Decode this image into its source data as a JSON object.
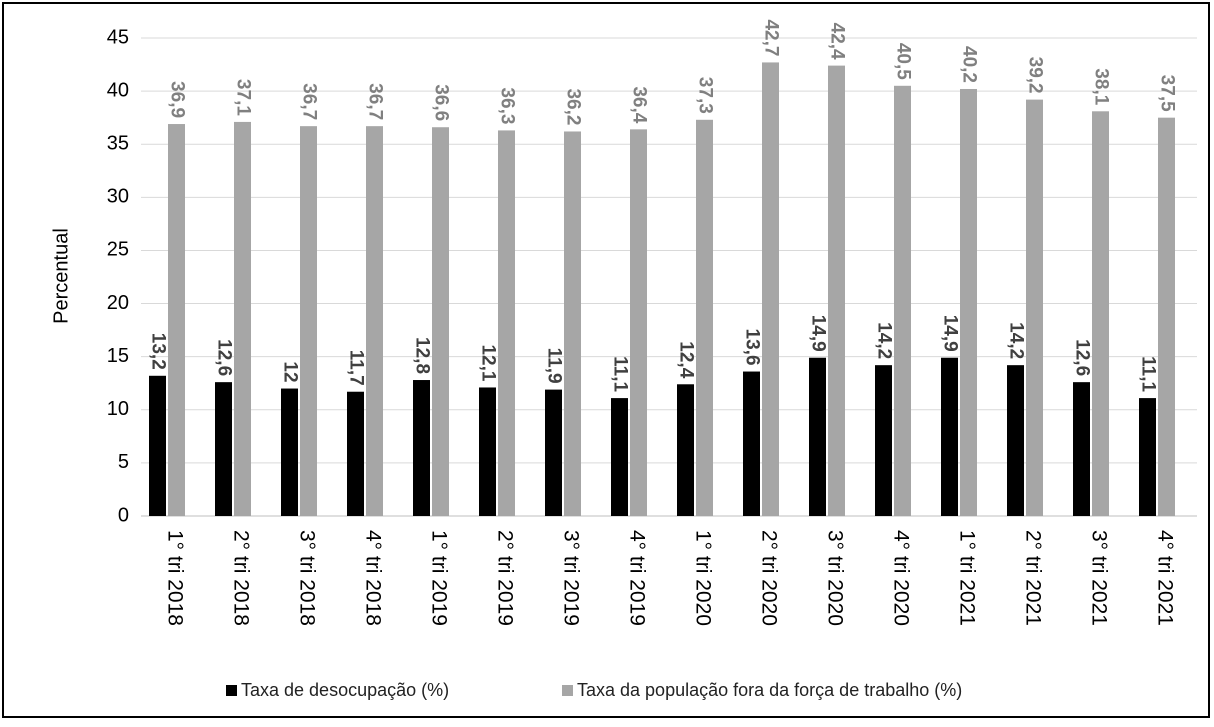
{
  "chart_data": {
    "type": "bar",
    "y_label": "Percentual",
    "categories": [
      "1° tri 2018",
      "2° tri 2018",
      "3° tri 2018",
      "4° tri 2018",
      "1° tri 2019",
      "2° tri 2019",
      "3° tri 2019",
      "4° tri 2019",
      "1° tri 2020",
      "2° tri 2020",
      "3° tri 2020",
      "4° tri 2020",
      "1° tri 2021",
      "2° tri 2021",
      "3° tri 2021",
      "4° tri 2021"
    ],
    "series": [
      {
        "name": "Taxa de desocupação (%)",
        "color": "#000000",
        "values": [
          13.2,
          12.6,
          12,
          11.7,
          12.8,
          12.1,
          11.9,
          11.1,
          12.4,
          13.6,
          14.9,
          14.2,
          14.9,
          14.2,
          12.6,
          11.1
        ],
        "value_labels": [
          "13,2",
          "12,6",
          "12",
          "11,7",
          "12,8",
          "12,1",
          "11,9",
          "11,1",
          "12,4",
          "13,6",
          "14,9",
          "14,2",
          "14,9",
          "14,2",
          "12,6",
          "11,1"
        ]
      },
      {
        "name": "Taxa da população fora da força de trabalho (%)",
        "color": "#a6a6a6",
        "values": [
          36.9,
          37.1,
          36.7,
          36.7,
          36.6,
          36.3,
          36.2,
          36.4,
          37.3,
          42.7,
          42.4,
          40.5,
          40.2,
          39.2,
          38.1,
          37.5
        ],
        "value_labels": [
          "36,9",
          "37,1",
          "36,7",
          "36,7",
          "36,6",
          "36,3",
          "36,2",
          "36,4",
          "37,3",
          "42,7",
          "42,4",
          "40,5",
          "40,2",
          "39,2",
          "38,1",
          "37,5"
        ]
      }
    ],
    "ylim": [
      0,
      45
    ],
    "yticks": [
      0,
      5,
      10,
      15,
      20,
      25,
      30,
      35,
      40,
      45
    ],
    "grid": true
  }
}
